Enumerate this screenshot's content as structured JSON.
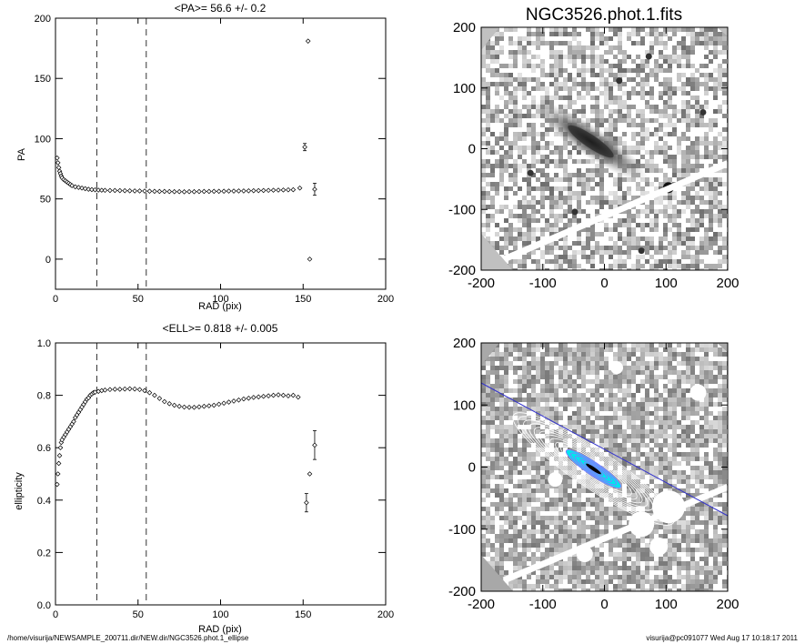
{
  "footer": {
    "path": "/home/visurija/NEWSAMPLE_200711.dir/NEW.dir/NGC3526.phot.1_ellipse",
    "stamp": "visurija@pc091077  Wed Aug 17 10:18:17 2011"
  },
  "chart_data": [
    {
      "type": "scatter",
      "title": "<PA>=  56.6 +/-   0.2",
      "xlabel": "RAD (pix)",
      "ylabel": "PA",
      "xlim": [
        0,
        200
      ],
      "ylim": [
        -25,
        200
      ],
      "xticks": [
        "0",
        "50",
        "100",
        "150",
        "200"
      ],
      "yticks": [
        "0",
        "50",
        "100",
        "150",
        "200"
      ],
      "vlines": [
        25,
        55
      ],
      "points": [
        [
          1,
          84
        ],
        [
          1.5,
          80
        ],
        [
          2,
          76
        ],
        [
          2.5,
          73
        ],
        [
          3,
          71
        ],
        [
          3.5,
          69
        ],
        [
          4,
          67.5
        ],
        [
          5,
          66
        ],
        [
          6,
          65
        ],
        [
          7,
          64
        ],
        [
          8,
          63
        ],
        [
          9,
          62
        ],
        [
          10,
          61
        ],
        [
          12,
          60
        ],
        [
          14,
          59.5
        ],
        [
          16,
          59
        ],
        [
          18,
          58.5
        ],
        [
          20,
          58
        ],
        [
          22,
          57.7
        ],
        [
          24,
          57.5
        ],
        [
          26,
          57.3
        ],
        [
          28,
          57.2
        ],
        [
          30,
          57.1
        ],
        [
          33,
          57
        ],
        [
          36,
          57
        ],
        [
          39,
          56.9
        ],
        [
          42,
          56.8
        ],
        [
          45,
          56.7
        ],
        [
          48,
          56.6
        ],
        [
          51,
          56.6
        ],
        [
          54,
          56.5
        ],
        [
          57,
          56.4
        ],
        [
          60,
          56.3
        ],
        [
          63,
          56.2
        ],
        [
          66,
          56.2
        ],
        [
          69,
          56.1
        ],
        [
          72,
          56
        ],
        [
          75,
          56
        ],
        [
          78,
          55.9
        ],
        [
          81,
          56
        ],
        [
          84,
          56
        ],
        [
          87,
          56.1
        ],
        [
          90,
          56.2
        ],
        [
          93,
          56.2
        ],
        [
          96,
          56.3
        ],
        [
          99,
          56.3
        ],
        [
          102,
          56.4
        ],
        [
          105,
          56.5
        ],
        [
          108,
          56.5
        ],
        [
          111,
          56.6
        ],
        [
          114,
          56.6
        ],
        [
          117,
          56.7
        ],
        [
          120,
          56.8
        ],
        [
          123,
          56.9
        ],
        [
          126,
          57
        ],
        [
          129,
          57.1
        ],
        [
          132,
          57.2
        ],
        [
          135,
          57.3
        ],
        [
          138,
          57.4
        ],
        [
          141,
          57.5
        ],
        [
          144,
          57.6
        ],
        [
          148,
          59
        ],
        [
          151,
          93
        ],
        [
          153,
          181
        ],
        [
          154,
          0
        ],
        [
          157,
          58
        ]
      ],
      "errors": [
        [
          151,
          3
        ],
        [
          157,
          5
        ]
      ]
    },
    {
      "type": "scatter",
      "title": "<ELL>= 0.818 +/-  0.005",
      "xlabel": "RAD (pix)",
      "ylabel": "ellipticity",
      "xlim": [
        0,
        200
      ],
      "ylim": [
        0,
        1
      ],
      "xticks": [
        "0",
        "50",
        "100",
        "150",
        "200"
      ],
      "yticks": [
        "0.0",
        "0.2",
        "0.4",
        "0.6",
        "0.8",
        "1.0"
      ],
      "vlines": [
        25,
        55
      ],
      "points": [
        [
          1,
          0.46
        ],
        [
          1.5,
          0.5
        ],
        [
          2,
          0.54
        ],
        [
          2.5,
          0.57
        ],
        [
          3,
          0.6
        ],
        [
          3.5,
          0.62
        ],
        [
          4,
          0.63
        ],
        [
          5,
          0.64
        ],
        [
          6,
          0.65
        ],
        [
          7,
          0.66
        ],
        [
          8,
          0.67
        ],
        [
          9,
          0.68
        ],
        [
          10,
          0.69
        ],
        [
          11,
          0.7
        ],
        [
          12,
          0.715
        ],
        [
          13,
          0.725
        ],
        [
          14,
          0.735
        ],
        [
          15,
          0.745
        ],
        [
          16,
          0.755
        ],
        [
          17,
          0.765
        ],
        [
          18,
          0.775
        ],
        [
          19,
          0.785
        ],
        [
          20,
          0.79
        ],
        [
          21,
          0.8
        ],
        [
          22,
          0.805
        ],
        [
          23,
          0.81
        ],
        [
          24,
          0.812
        ],
        [
          26,
          0.815
        ],
        [
          28,
          0.818
        ],
        [
          30,
          0.82
        ],
        [
          33,
          0.822
        ],
        [
          36,
          0.823
        ],
        [
          39,
          0.823
        ],
        [
          42,
          0.824
        ],
        [
          45,
          0.825
        ],
        [
          48,
          0.824
        ],
        [
          51,
          0.822
        ],
        [
          54,
          0.818
        ],
        [
          57,
          0.81
        ],
        [
          60,
          0.8
        ],
        [
          63,
          0.788
        ],
        [
          66,
          0.776
        ],
        [
          69,
          0.768
        ],
        [
          72,
          0.762
        ],
        [
          75,
          0.758
        ],
        [
          78,
          0.755
        ],
        [
          81,
          0.754
        ],
        [
          84,
          0.754
        ],
        [
          87,
          0.756
        ],
        [
          90,
          0.758
        ],
        [
          93,
          0.76
        ],
        [
          96,
          0.762
        ],
        [
          99,
          0.766
        ],
        [
          102,
          0.77
        ],
        [
          105,
          0.774
        ],
        [
          108,
          0.778
        ],
        [
          111,
          0.782
        ],
        [
          114,
          0.786
        ],
        [
          117,
          0.789
        ],
        [
          120,
          0.792
        ],
        [
          123,
          0.794
        ],
        [
          126,
          0.796
        ],
        [
          129,
          0.798
        ],
        [
          132,
          0.8
        ],
        [
          135,
          0.802
        ],
        [
          138,
          0.8
        ],
        [
          141,
          0.798
        ],
        [
          144,
          0.8
        ],
        [
          147,
          0.793
        ],
        [
          152,
          0.39
        ],
        [
          154,
          0.5
        ],
        [
          157,
          0.61
        ]
      ],
      "errors": [
        [
          152,
          0.035
        ],
        [
          157,
          0.055
        ]
      ]
    },
    {
      "type": "heatmap",
      "title": "NGC3526.phot.1.fits",
      "xlim": [
        -200,
        200
      ],
      "ylim": [
        -200,
        200
      ],
      "xticks": [
        "-200",
        "-100",
        "0",
        "100",
        "200"
      ],
      "yticks": [
        "-200",
        "-100",
        "0",
        "100",
        "200"
      ]
    },
    {
      "type": "heatmap",
      "title": "",
      "xlim": [
        -200,
        200
      ],
      "ylim": [
        -200,
        200
      ],
      "xticks": [
        "-200",
        "-100",
        "0",
        "100",
        "200"
      ],
      "yticks": [
        "-200",
        "-100",
        "0",
        "100",
        "200"
      ],
      "contour_colors": [
        "#00e5ee",
        "#7f7fff",
        "#ffffff"
      ],
      "line_color": "#3333cc"
    }
  ]
}
